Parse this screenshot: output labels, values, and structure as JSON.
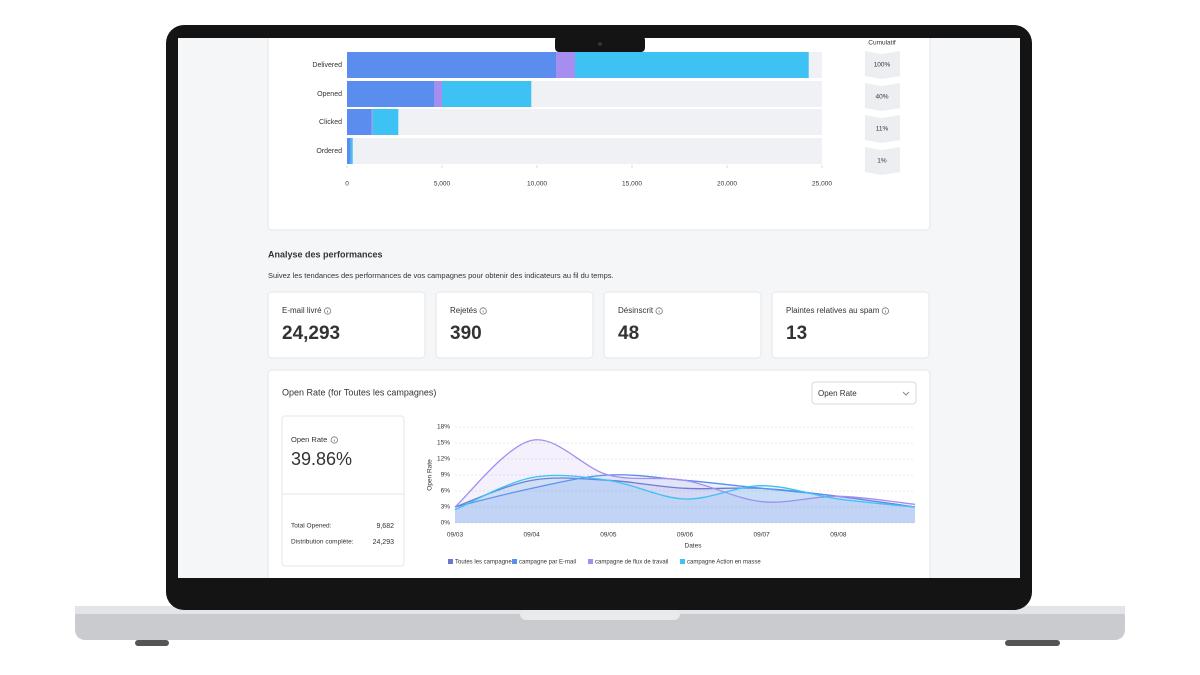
{
  "chart_data": [
    {
      "type": "bar",
      "orientation": "horizontal",
      "stacked": true,
      "categories": [
        "Delivered",
        "Opened",
        "Clicked",
        "Ordered"
      ],
      "series": [
        {
          "color": "#5b8def",
          "values": [
            11000,
            4600,
            1300,
            200
          ]
        },
        {
          "color": "#a58ef0",
          "values": [
            1000,
            400,
            50,
            0
          ]
        },
        {
          "color": "#3ec1f3",
          "values": [
            12300,
            4700,
            1350,
            100
          ]
        }
      ],
      "xlim": [
        0,
        25000
      ],
      "xticks": [
        0,
        {
          "value": 5000,
          "label": "5,000"
        },
        {
          "value": 10000,
          "label": "10,000"
        },
        {
          "value": 15000,
          "label": "15,000"
        },
        {
          "value": 20000,
          "label": "20,000"
        },
        {
          "value": 25000,
          "label": "25,000"
        }
      ],
      "cumulative_title": "Cumulatif",
      "cumulative_labels": [
        "100%",
        "40%",
        "11%",
        "1%"
      ]
    },
    {
      "type": "line",
      "title": "Open Rate (for Toutes les campagnes)",
      "xlabel": "Dates",
      "ylabel": "Open Rate",
      "categories": [
        "09/03",
        "09/04",
        "09/05",
        "09/06",
        "09/07",
        "09/08",
        null
      ],
      "series": [
        {
          "name": "Toutes les campagnes",
          "color": "#6c78c9",
          "values": [
            3,
            8,
            8,
            6.5,
            6.5,
            5,
            3
          ]
        },
        {
          "name": "campagne par E-mail",
          "color": "#5b8def",
          "values": [
            3,
            6.5,
            9,
            8,
            6.5,
            5,
            3
          ]
        },
        {
          "name": "campagne de flux de travail",
          "color": "#a58ef0",
          "values": [
            3,
            15.5,
            9,
            8,
            4,
            5,
            3.5
          ]
        },
        {
          "name": "campagne Action en masse",
          "color": "#3ec1f3",
          "values": [
            2.5,
            8.5,
            8,
            4.5,
            7,
            4.5,
            3
          ]
        }
      ],
      "ylim": [
        0,
        18
      ],
      "yticks": [
        {
          "value": 0,
          "label": "0%"
        },
        {
          "value": 3,
          "label": "3%"
        },
        {
          "value": 6,
          "label": "6%"
        },
        {
          "value": 9,
          "label": "9%"
        },
        {
          "value": 12,
          "label": "12%"
        },
        {
          "value": 15,
          "label": "15%"
        },
        {
          "value": 18,
          "label": "18%"
        }
      ],
      "grid": true
    }
  ],
  "section": {
    "title": "Analyse des performances",
    "subtitle": "Suivez les tendances des performances de vos campagnes pour obtenir des indicateurs au fil du temps."
  },
  "kpis": [
    {
      "label": "E-mail livré",
      "value": "24,293"
    },
    {
      "label": "Rejetés",
      "value": "390"
    },
    {
      "label": "Désinscrit",
      "value": "48"
    },
    {
      "label": "Plaintes relatives au spam",
      "value": "13"
    }
  ],
  "select": "Open Rate",
  "stat_box": {
    "label": "Open Rate",
    "value": "39.86%",
    "rows": [
      [
        "Total Opened:",
        "9,682"
      ],
      [
        "Distribution complète:",
        "24,293"
      ]
    ]
  }
}
